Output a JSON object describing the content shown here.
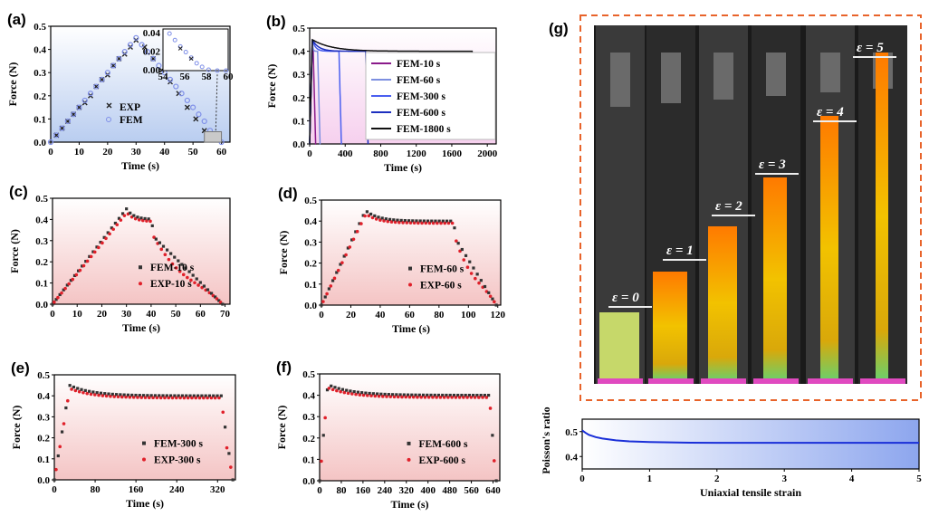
{
  "panels": {
    "a": {
      "label": "(a)",
      "chart_data": {
        "type": "scatter",
        "xlabel": "Time (s)",
        "ylabel": "Force (N)",
        "xlim": [
          0,
          63
        ],
        "ylim": [
          0,
          0.5
        ],
        "xticks": [
          "0",
          "10",
          "20",
          "30",
          "40",
          "50",
          "60"
        ],
        "yticks": [
          "0.0",
          "0.1",
          "0.2",
          "0.3",
          "0.4",
          "0.5"
        ],
        "legend": [
          "EXP",
          "FEM"
        ],
        "series": [
          {
            "name": "EXP",
            "x": [
              2,
              4,
              6,
              8,
              10,
              12,
              14,
              16,
              18,
              20,
              22,
              24,
              26,
              28,
              30,
              33,
              36,
              39,
              42,
              45,
              48,
              51,
              54,
              57
            ],
            "y": [
              0.03,
              0.06,
              0.09,
              0.12,
              0.15,
              0.17,
              0.2,
              0.24,
              0.27,
              0.29,
              0.33,
              0.36,
              0.38,
              0.41,
              0.44,
              0.41,
              0.36,
              0.31,
              0.26,
              0.21,
              0.15,
              0.1,
              0.05,
              0.01
            ]
          },
          {
            "name": "FEM",
            "x": [
              0,
              2,
              4,
              6,
              8,
              10,
              12,
              14,
              16,
              18,
              20,
              22,
              24,
              26,
              28,
              30,
              32,
              34,
              36,
              38,
              40,
              42,
              44,
              46,
              48,
              50,
              52,
              54,
              56,
              58,
              60
            ],
            "y": [
              0.0,
              0.03,
              0.06,
              0.09,
              0.12,
              0.15,
              0.18,
              0.21,
              0.24,
              0.27,
              0.3,
              0.33,
              0.36,
              0.39,
              0.42,
              0.45,
              0.42,
              0.39,
              0.36,
              0.33,
              0.3,
              0.27,
              0.24,
              0.21,
              0.18,
              0.15,
              0.12,
              0.09,
              0.05,
              0.01,
              0.0
            ]
          }
        ],
        "inset": {
          "xticks": [
            "54",
            "56",
            "58",
            "60"
          ],
          "yticks": [
            "0.00",
            "0.02",
            "0.04"
          ],
          "xlim": [
            54,
            60
          ],
          "ylim": [
            0,
            0.045
          ]
        }
      }
    },
    "b": {
      "label": "(b)",
      "chart_data": {
        "type": "line",
        "xlabel": "Time (s)",
        "ylabel": "Force (N)",
        "xlim": [
          0,
          2100
        ],
        "ylim": [
          0,
          0.5
        ],
        "xticks": [
          "0",
          "400",
          "800",
          "1200",
          "1600",
          "2000"
        ],
        "yticks": [
          "0.0",
          "0.1",
          "0.2",
          "0.3",
          "0.4",
          "0.5"
        ],
        "series": [
          {
            "name": "FEM-10 s",
            "color": "#8a1a8a",
            "hold": 10
          },
          {
            "name": "FEM-60 s",
            "color": "#7d8fe0",
            "hold": 60
          },
          {
            "name": "FEM-300 s",
            "color": "#4a5ff0",
            "hold": 300
          },
          {
            "name": "FEM-600 s",
            "color": "#1d2fbf",
            "hold": 600
          },
          {
            "name": "FEM-1800 s",
            "color": "#111111",
            "hold": 1800
          }
        ]
      }
    },
    "c": {
      "label": "(c)",
      "chart_data": {
        "type": "scatter",
        "xlabel": "Time (s)",
        "ylabel": "Force (N)",
        "xlim": [
          0,
          72
        ],
        "ylim": [
          0,
          0.5
        ],
        "xticks": [
          "0",
          "10",
          "20",
          "30",
          "40",
          "50",
          "60",
          "70"
        ],
        "yticks": [
          "0.0",
          "0.1",
          "0.2",
          "0.3",
          "0.4",
          "0.5"
        ],
        "legend": [
          "FEM-10 s",
          "EXP-10 s"
        ],
        "hold": 10
      }
    },
    "d": {
      "label": "(d)",
      "chart_data": {
        "type": "scatter",
        "xlabel": "Time (s)",
        "ylabel": "Force (N)",
        "xlim": [
          0,
          122
        ],
        "ylim": [
          0,
          0.5
        ],
        "xticks": [
          "0",
          "20",
          "40",
          "60",
          "80",
          "100",
          "120"
        ],
        "yticks": [
          "0.0",
          "0.1",
          "0.2",
          "0.3",
          "0.4",
          "0.5"
        ],
        "legend": [
          "FEM-60 s",
          "EXP-60 s"
        ],
        "hold": 60
      }
    },
    "e": {
      "label": "(e)",
      "chart_data": {
        "type": "scatter",
        "xlabel": "Time (s)",
        "ylabel": "Force (N)",
        "xlim": [
          0,
          355
        ],
        "ylim": [
          0,
          0.5
        ],
        "xticks": [
          "0",
          "80",
          "160",
          "240",
          "320"
        ],
        "yticks": [
          "0.0",
          "0.1",
          "0.2",
          "0.3",
          "0.4",
          "0.5"
        ],
        "legend": [
          "FEM-300 s",
          "EXP-300 s"
        ],
        "hold": 300
      }
    },
    "f": {
      "label": "(f)",
      "chart_data": {
        "type": "scatter",
        "xlabel": "Time (s)",
        "ylabel": "Force (N)",
        "xlim": [
          0,
          665
        ],
        "ylim": [
          0,
          0.5
        ],
        "xticks": [
          "0",
          "80",
          "160",
          "240",
          "320",
          "400",
          "480",
          "560",
          "640"
        ],
        "yticks": [
          "0.0",
          "0.1",
          "0.2",
          "0.3",
          "0.4",
          "0.5"
        ],
        "legend": [
          "FEM-600 s",
          "EXP-600 s"
        ],
        "hold": 600
      }
    },
    "g": {
      "label": "(g)",
      "strain_labels": [
        "ε = 0",
        "ε = 1",
        "ε = 2",
        "ε = 3",
        "ε = 4",
        "ε = 5"
      ],
      "chart_data": {
        "type": "line",
        "xlabel": "Uniaxial tensile strain",
        "ylabel": "Poisson's ratio",
        "xlim": [
          0,
          5
        ],
        "ylim": [
          0.35,
          0.55
        ],
        "xticks": [
          "0",
          "1",
          "2",
          "3",
          "4",
          "5"
        ],
        "yticks": [
          "0.4",
          "0.5"
        ],
        "series": [
          {
            "name": "Poisson's ratio",
            "x": [
              0,
              0.05,
              0.1,
              0.2,
              0.3,
              0.5,
              0.7,
              1.0,
              1.5,
              2,
              3,
              4,
              5
            ],
            "y": [
              0.505,
              0.495,
              0.487,
              0.478,
              0.472,
              0.465,
              0.461,
              0.458,
              0.456,
              0.455,
              0.455,
              0.455,
              0.455
            ]
          }
        ]
      }
    }
  },
  "colors": {
    "fem": "#333333",
    "exp": "#e0202a",
    "fem_blue": "#7f8fe8",
    "dash_border": "#e8632a",
    "poisson_line": "#1a2fd8"
  }
}
